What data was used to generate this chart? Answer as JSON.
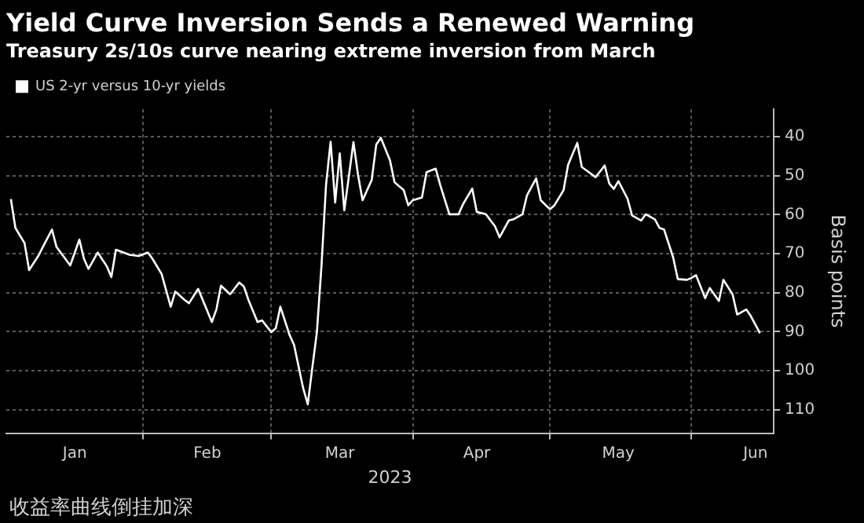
{
  "chart_data": {
    "type": "line",
    "title": "Yield Curve Inversion Sends a Renewed Warning",
    "subtitle": "Treasury 2s/10s curve nearing extreme inversion from March",
    "xlabel": "2023",
    "ylabel": "Basis points",
    "annotations": [
      "收益率曲线倒挂加深"
    ],
    "xlim": [
      "2023-01-02",
      "2023-06-19"
    ],
    "xticks": [
      {
        "value": "2023-01-17",
        "label": "Jan"
      },
      {
        "value": "2023-02-01",
        "label": null
      },
      {
        "value": "2023-02-15",
        "label": "Feb"
      },
      {
        "value": "2023-03-01",
        "label": null
      },
      {
        "value": "2023-03-16",
        "label": "Mar"
      },
      {
        "value": "2023-04-01",
        "label": null
      },
      {
        "value": "2023-04-15",
        "label": "Apr"
      },
      {
        "value": "2023-05-01",
        "label": null
      },
      {
        "value": "2023-05-16",
        "label": "May"
      },
      {
        "value": "2023-06-01",
        "label": null
      },
      {
        "value": "2023-06-15",
        "label": "Jun"
      }
    ],
    "ylim": [
      116,
      33
    ],
    "yticks": [
      40,
      50,
      60,
      70,
      80,
      90,
      100,
      110
    ],
    "grid": true,
    "legend": "top left",
    "marker": "none",
    "line_style": "solid",
    "x": [
      "2023-01-03",
      "2023-01-04",
      "2023-01-06",
      "2023-01-07",
      "2023-01-09",
      "2023-01-10",
      "2023-01-12",
      "2023-01-13",
      "2023-01-16",
      "2023-01-18",
      "2023-01-19",
      "2023-01-20",
      "2023-01-22",
      "2023-01-24",
      "2023-01-25",
      "2023-01-26",
      "2023-01-29",
      "2023-01-31",
      "2023-02-02",
      "2023-02-03",
      "2023-02-05",
      "2023-02-07",
      "2023-02-08",
      "2023-02-10",
      "2023-02-11",
      "2023-02-13",
      "2023-02-16",
      "2023-02-17",
      "2023-02-18",
      "2023-02-20",
      "2023-02-22",
      "2023-02-23",
      "2023-02-24",
      "2023-02-26",
      "2023-02-27",
      "2023-03-01",
      "2023-03-02",
      "2023-03-03",
      "2023-03-05",
      "2023-03-06",
      "2023-03-08",
      "2023-03-09",
      "2023-03-10",
      "2023-03-11",
      "2023-03-12",
      "2023-03-13",
      "2023-03-14",
      "2023-03-15",
      "2023-03-16",
      "2023-03-17",
      "2023-03-19",
      "2023-03-20",
      "2023-03-21",
      "2023-03-23",
      "2023-03-24",
      "2023-03-25",
      "2023-03-27",
      "2023-03-28",
      "2023-03-30",
      "2023-03-31",
      "2023-04-01",
      "2023-04-03",
      "2023-04-04",
      "2023-04-06",
      "2023-04-07",
      "2023-04-09",
      "2023-04-11",
      "2023-04-12",
      "2023-04-14",
      "2023-04-15",
      "2023-04-17",
      "2023-04-19",
      "2023-04-20",
      "2023-04-22",
      "2023-04-23",
      "2023-04-25",
      "2023-04-26",
      "2023-04-28",
      "2023-04-29",
      "2023-05-01",
      "2023-05-02",
      "2023-05-04",
      "2023-05-05",
      "2023-05-07",
      "2023-05-08",
      "2023-05-10",
      "2023-05-11",
      "2023-05-13",
      "2023-05-14",
      "2023-05-15",
      "2023-05-16",
      "2023-05-18",
      "2023-05-19",
      "2023-05-21",
      "2023-05-22",
      "2023-05-24",
      "2023-05-25",
      "2023-05-26",
      "2023-05-28",
      "2023-05-29",
      "2023-05-31",
      "2023-06-01",
      "2023-06-02",
      "2023-06-04",
      "2023-06-05",
      "2023-06-07",
      "2023-06-08",
      "2023-06-10",
      "2023-06-11",
      "2023-06-13",
      "2023-06-14",
      "2023-06-16"
    ],
    "series": [
      {
        "name": "US 2-yr versus 10-yr yields",
        "color": "#ffffff",
        "values": [
          56,
          63.4,
          67.3,
          74.2,
          70.6,
          68.3,
          63.8,
          68.3,
          73,
          66.4,
          71.3,
          73.9,
          69.7,
          73.2,
          76,
          69,
          70.3,
          70.6,
          69.7,
          71.3,
          75.2,
          83.6,
          79.7,
          81.8,
          82.7,
          79,
          87.5,
          84.3,
          78.2,
          80.4,
          77.4,
          78.4,
          81.8,
          87.5,
          87.1,
          90.1,
          89.1,
          83.6,
          90.8,
          93.4,
          104.5,
          108.6,
          99.2,
          90.1,
          73.2,
          52.4,
          41.3,
          56.9,
          44.3,
          58.9,
          41.4,
          49.8,
          56.3,
          51.1,
          42,
          40.3,
          46.1,
          51.7,
          53.7,
          57.6,
          56.3,
          55.6,
          49.1,
          48.2,
          52.4,
          59.9,
          59.9,
          57.3,
          53.3,
          59.3,
          59.9,
          63,
          65.8,
          61.5,
          61.2,
          59.9,
          55,
          50.7,
          56.3,
          58.6,
          57.6,
          53.7,
          47.2,
          41.6,
          47.8,
          49.5,
          50.4,
          47.4,
          52,
          53.4,
          51.4,
          55.9,
          60.2,
          61.5,
          59.9,
          61.2,
          63.4,
          63.8,
          71,
          76.5,
          76.7,
          76.2,
          75.5,
          81.4,
          78.8,
          82.1,
          76.7,
          80.4,
          85.6,
          84.3,
          86,
          90.4
        ]
      }
    ]
  }
}
